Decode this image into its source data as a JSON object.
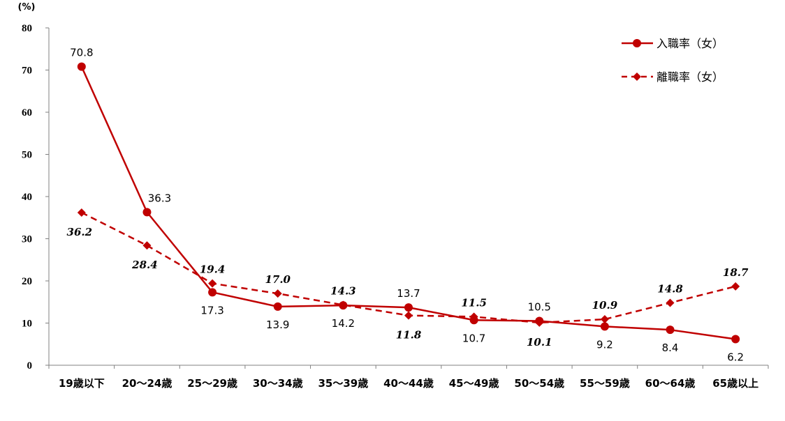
{
  "chart_data": {
    "type": "line",
    "unit_label": "(%)",
    "categories": [
      "19歳以下",
      "20～24歳",
      "25～29歳",
      "30～34歳",
      "35～39歳",
      "40～44歳",
      "45～49歳",
      "50～54歳",
      "55～59歳",
      "60～64歳",
      "65歳以上"
    ],
    "ylim": [
      0,
      80
    ],
    "yticks": [
      0,
      10,
      20,
      30,
      40,
      50,
      60,
      70,
      80
    ],
    "grid": false,
    "legend_position": "top-right",
    "series": [
      {
        "name": "入職率（女）",
        "values": [
          70.8,
          36.3,
          17.3,
          13.9,
          14.2,
          13.7,
          10.7,
          10.5,
          9.2,
          8.4,
          6.2
        ],
        "labels": [
          "70.8",
          "36.3",
          "17.3",
          "13.9",
          "14.2",
          "13.7",
          "10.7",
          "10.5",
          "9.2",
          "8.4",
          "6.2"
        ],
        "color": "#C00000",
        "line_style": "solid",
        "marker": "circle"
      },
      {
        "name": "離職率（女）",
        "values": [
          36.2,
          28.4,
          19.4,
          17.0,
          14.3,
          11.8,
          11.5,
          10.1,
          10.9,
          14.8,
          18.7
        ],
        "labels": [
          "36.2",
          "28.4",
          "19.4",
          "17.0",
          "14.3",
          "11.8",
          "11.5",
          "10.1",
          "10.9",
          "14.8",
          "18.7"
        ],
        "color": "#C00000",
        "line_style": "dashed",
        "marker": "diamond"
      }
    ]
  }
}
